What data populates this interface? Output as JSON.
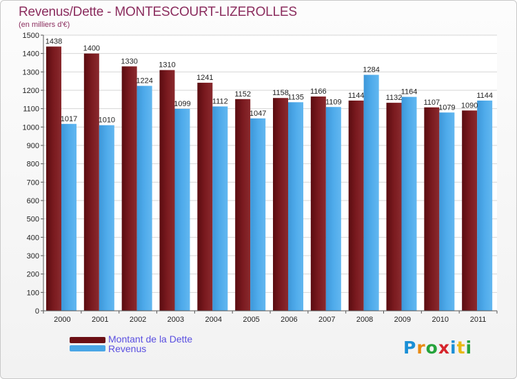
{
  "title": "Revenus/Dette - MONTESCOURT-LIZEROLLES",
  "subtitle": "(en milliers d'€)",
  "logo": "Proxiti",
  "colors": {
    "dette": "#6b0f14",
    "revenus": "#4aa6e6",
    "grid": "#d6d6d6",
    "text": "#222222"
  },
  "chart_data": {
    "type": "bar",
    "title": "Revenus/Dette - MONTESCOURT-LIZEROLLES",
    "ylabel": "(en milliers d'€)",
    "categories": [
      "2000",
      "2001",
      "2002",
      "2003",
      "2004",
      "2005",
      "2006",
      "2007",
      "2008",
      "2009",
      "2010",
      "2011"
    ],
    "series": [
      {
        "name": "Montant de la Dette",
        "values": [
          1438,
          1400,
          1330,
          1310,
          1241,
          1152,
          1158,
          1166,
          1144,
          1132,
          1107,
          1090
        ]
      },
      {
        "name": "Revenus",
        "values": [
          1017,
          1010,
          1224,
          1099,
          1112,
          1047,
          1135,
          1109,
          1284,
          1164,
          1079,
          1144
        ]
      }
    ],
    "ylim": [
      0,
      1500
    ],
    "yticks": [
      0,
      100,
      200,
      300,
      400,
      500,
      600,
      700,
      800,
      900,
      1000,
      1100,
      1200,
      1300,
      1400,
      1500
    ],
    "grid": true,
    "legend": "bottom-left"
  },
  "legend": [
    {
      "label": "Montant de la Dette"
    },
    {
      "label": "Revenus"
    }
  ]
}
